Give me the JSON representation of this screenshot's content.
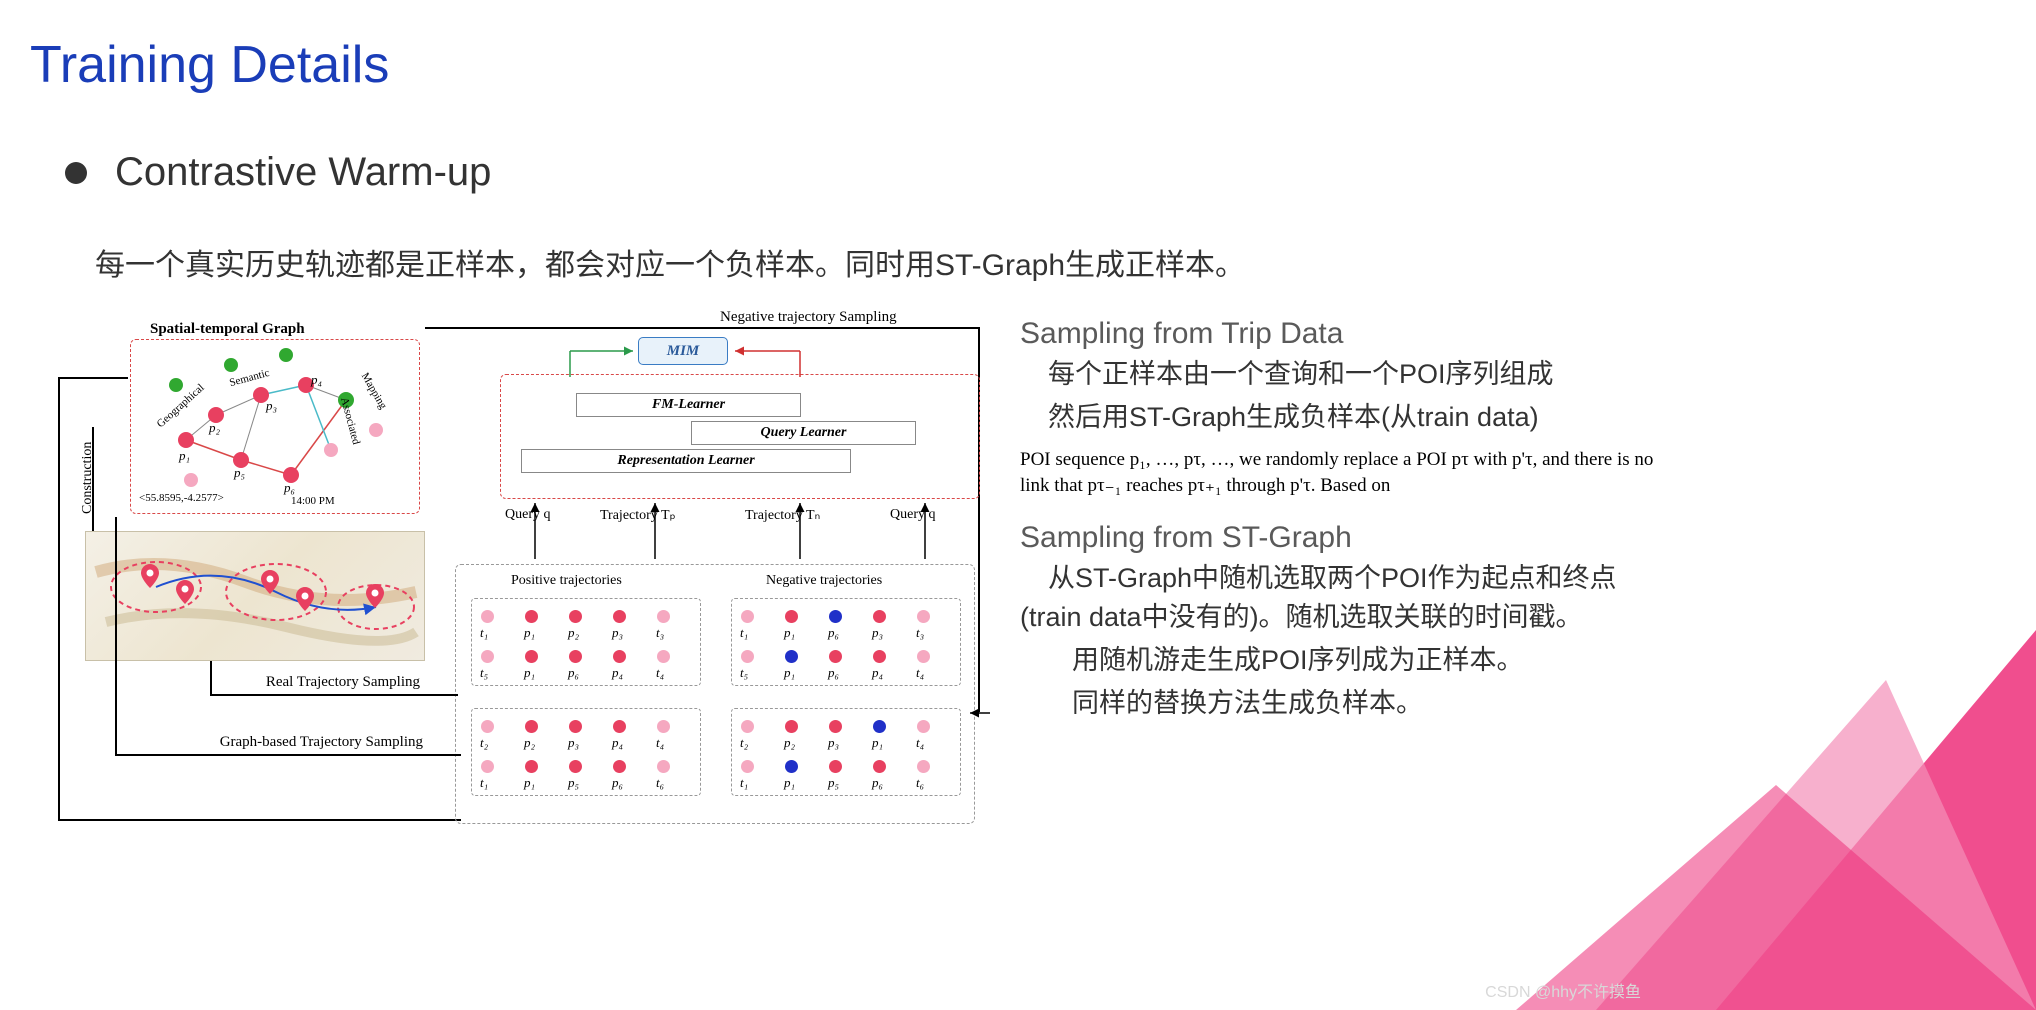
{
  "title": "Training Details",
  "subtitle": "Contrastive Warm-up",
  "description": "每一个真实历史轨迹都是正样本，都会对应一个负样本。同时用ST-Graph生成正样本。",
  "right": {
    "sec1_title": "Sampling from Trip Data",
    "sec1_line1": "每个正样本由一个查询和一个POI序列组成",
    "sec1_line2": "然后用ST-Graph生成负样本(从train data)",
    "eng_quote": "POI sequence p₁, …, pτ, …, we randomly replace a POI pτ with p'τ, and there is no link that pτ₋₁ reaches pτ₊₁ through p'τ. Based on",
    "sec2_title": "Sampling from ST-Graph",
    "sec2_line1": "从ST-Graph中随机选取两个POI作为起点和终点(train data中没有的)。随机选取关联的时间戳。",
    "sec2_line2": "用随机游走生成POI序列成为正样本。",
    "sec2_line3": "同样的替换方法生成负样本。"
  },
  "diagram": {
    "neg_sampling": "Negative trajectory Sampling",
    "stg_title": "Spatial-temporal Graph",
    "stg_coord": "<55.8595,-4.2577>",
    "stg_time": "14:00 PM",
    "stg_edge1": "Geographical",
    "stg_edge2": "Semantic",
    "stg_edge3": "Associated",
    "stg_edge4": "Mapping",
    "stg_nodes": [
      "p₁",
      "p₂",
      "p₃",
      "p₄",
      "p₅",
      "p₆"
    ],
    "mim": "MIM",
    "fm_learner": "FM-Learner",
    "query_learner": "Query Learner",
    "rep_learner": "Representation  Learner",
    "q_left": "Query q",
    "traj_tp": "Trajectory  Tₚ",
    "traj_tn": "Trajectory  Tₙ",
    "q_right": "Query q",
    "pos_title": "Positive trajectories",
    "neg_title": "Negative trajectories",
    "construction": "Construction",
    "real_sampling": "Real Trajectory Sampling",
    "graph_sampling": "Graph-based Trajectory Sampling",
    "pos_rows": [
      {
        "labels": [
          "t₁",
          "p₁",
          "p₂",
          "p₃",
          "t₃"
        ],
        "colors": [
          "pink",
          "red",
          "red",
          "red",
          "pink"
        ]
      },
      {
        "labels": [
          "t₅",
          "p₁",
          "p₆",
          "p₄",
          "t₄"
        ],
        "colors": [
          "pink",
          "red",
          "red",
          "red",
          "pink"
        ]
      },
      {
        "labels": [
          "t₂",
          "p₂",
          "p₃",
          "p₄",
          "t₄"
        ],
        "colors": [
          "pink",
          "red",
          "red",
          "red",
          "pink"
        ]
      },
      {
        "labels": [
          "t₁",
          "p₁",
          "p₅",
          "p₆",
          "t₆"
        ],
        "colors": [
          "pink",
          "red",
          "red",
          "red",
          "pink"
        ]
      }
    ],
    "neg_rows": [
      {
        "labels": [
          "t₁",
          "p₁",
          "p₆",
          "p₃",
          "t₃"
        ],
        "colors": [
          "pink",
          "red",
          "blue",
          "red",
          "pink"
        ]
      },
      {
        "labels": [
          "t₅",
          "p₁",
          "p₆",
          "p₄",
          "t₄"
        ],
        "colors": [
          "pink",
          "blue",
          "red",
          "red",
          "pink"
        ]
      },
      {
        "labels": [
          "t₂",
          "p₂",
          "p₃",
          "p₁",
          "t₄"
        ],
        "colors": [
          "pink",
          "red",
          "red",
          "blue",
          "pink"
        ]
      },
      {
        "labels": [
          "t₁",
          "p₁",
          "p₅",
          "p₆",
          "t₆"
        ],
        "colors": [
          "pink",
          "blue",
          "red",
          "red",
          "pink"
        ]
      }
    ]
  },
  "watermark": "CSDN @hhy不许摸鱼",
  "colors": {
    "title": "#1a3db8",
    "pink_tri": "#ed2f7a",
    "light_tri": "#f48fb8",
    "dot_pink": "#f5a8c0",
    "dot_red": "#e84060",
    "dot_blue": "#2030c8",
    "dash_red": "#d94848"
  }
}
